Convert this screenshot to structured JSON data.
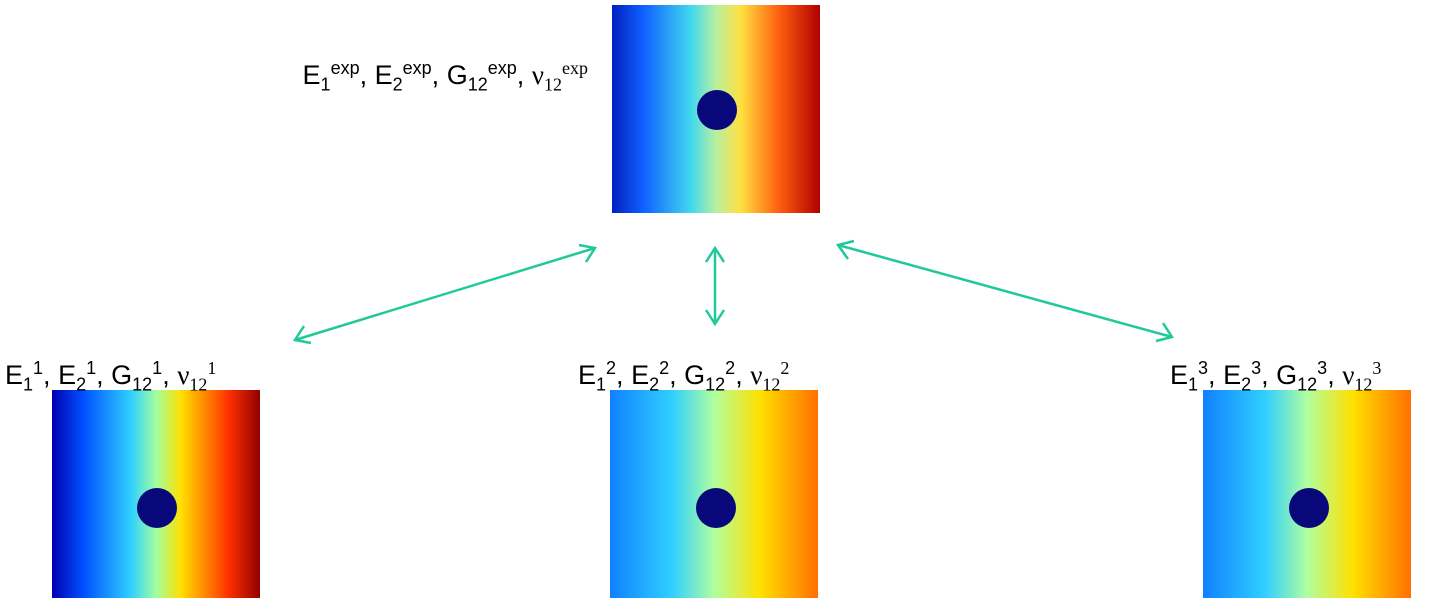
{
  "separator": ", ",
  "nodes": [
    {
      "terms": [
        {
          "base": "E",
          "sub": "1",
          "sup": "exp"
        },
        {
          "base": "E",
          "sub": "2",
          "sup": "exp"
        },
        {
          "base": "G",
          "sub": "12",
          "sup": "exp"
        },
        {
          "base": "ν",
          "sub": "12",
          "sup": "exp"
        }
      ]
    },
    {
      "terms": [
        {
          "base": "E",
          "sub": "1",
          "sup": "1"
        },
        {
          "base": "E",
          "sub": "2",
          "sup": "1"
        },
        {
          "base": "G",
          "sub": "12",
          "sup": "1"
        },
        {
          "base": "ν",
          "sub": "12",
          "sup": "1"
        }
      ]
    },
    {
      "terms": [
        {
          "base": "E",
          "sub": "1",
          "sup": "2"
        },
        {
          "base": "E",
          "sub": "2",
          "sup": "2"
        },
        {
          "base": "G",
          "sub": "12",
          "sup": "2"
        },
        {
          "base": "ν",
          "sub": "12",
          "sup": "2"
        }
      ]
    },
    {
      "terms": [
        {
          "base": "E",
          "sub": "1",
          "sup": "3"
        },
        {
          "base": "E",
          "sub": "2",
          "sup": "3"
        },
        {
          "base": "G",
          "sub": "12",
          "sup": "3"
        },
        {
          "base": "ν",
          "sub": "12",
          "sup": "3"
        }
      ]
    }
  ]
}
